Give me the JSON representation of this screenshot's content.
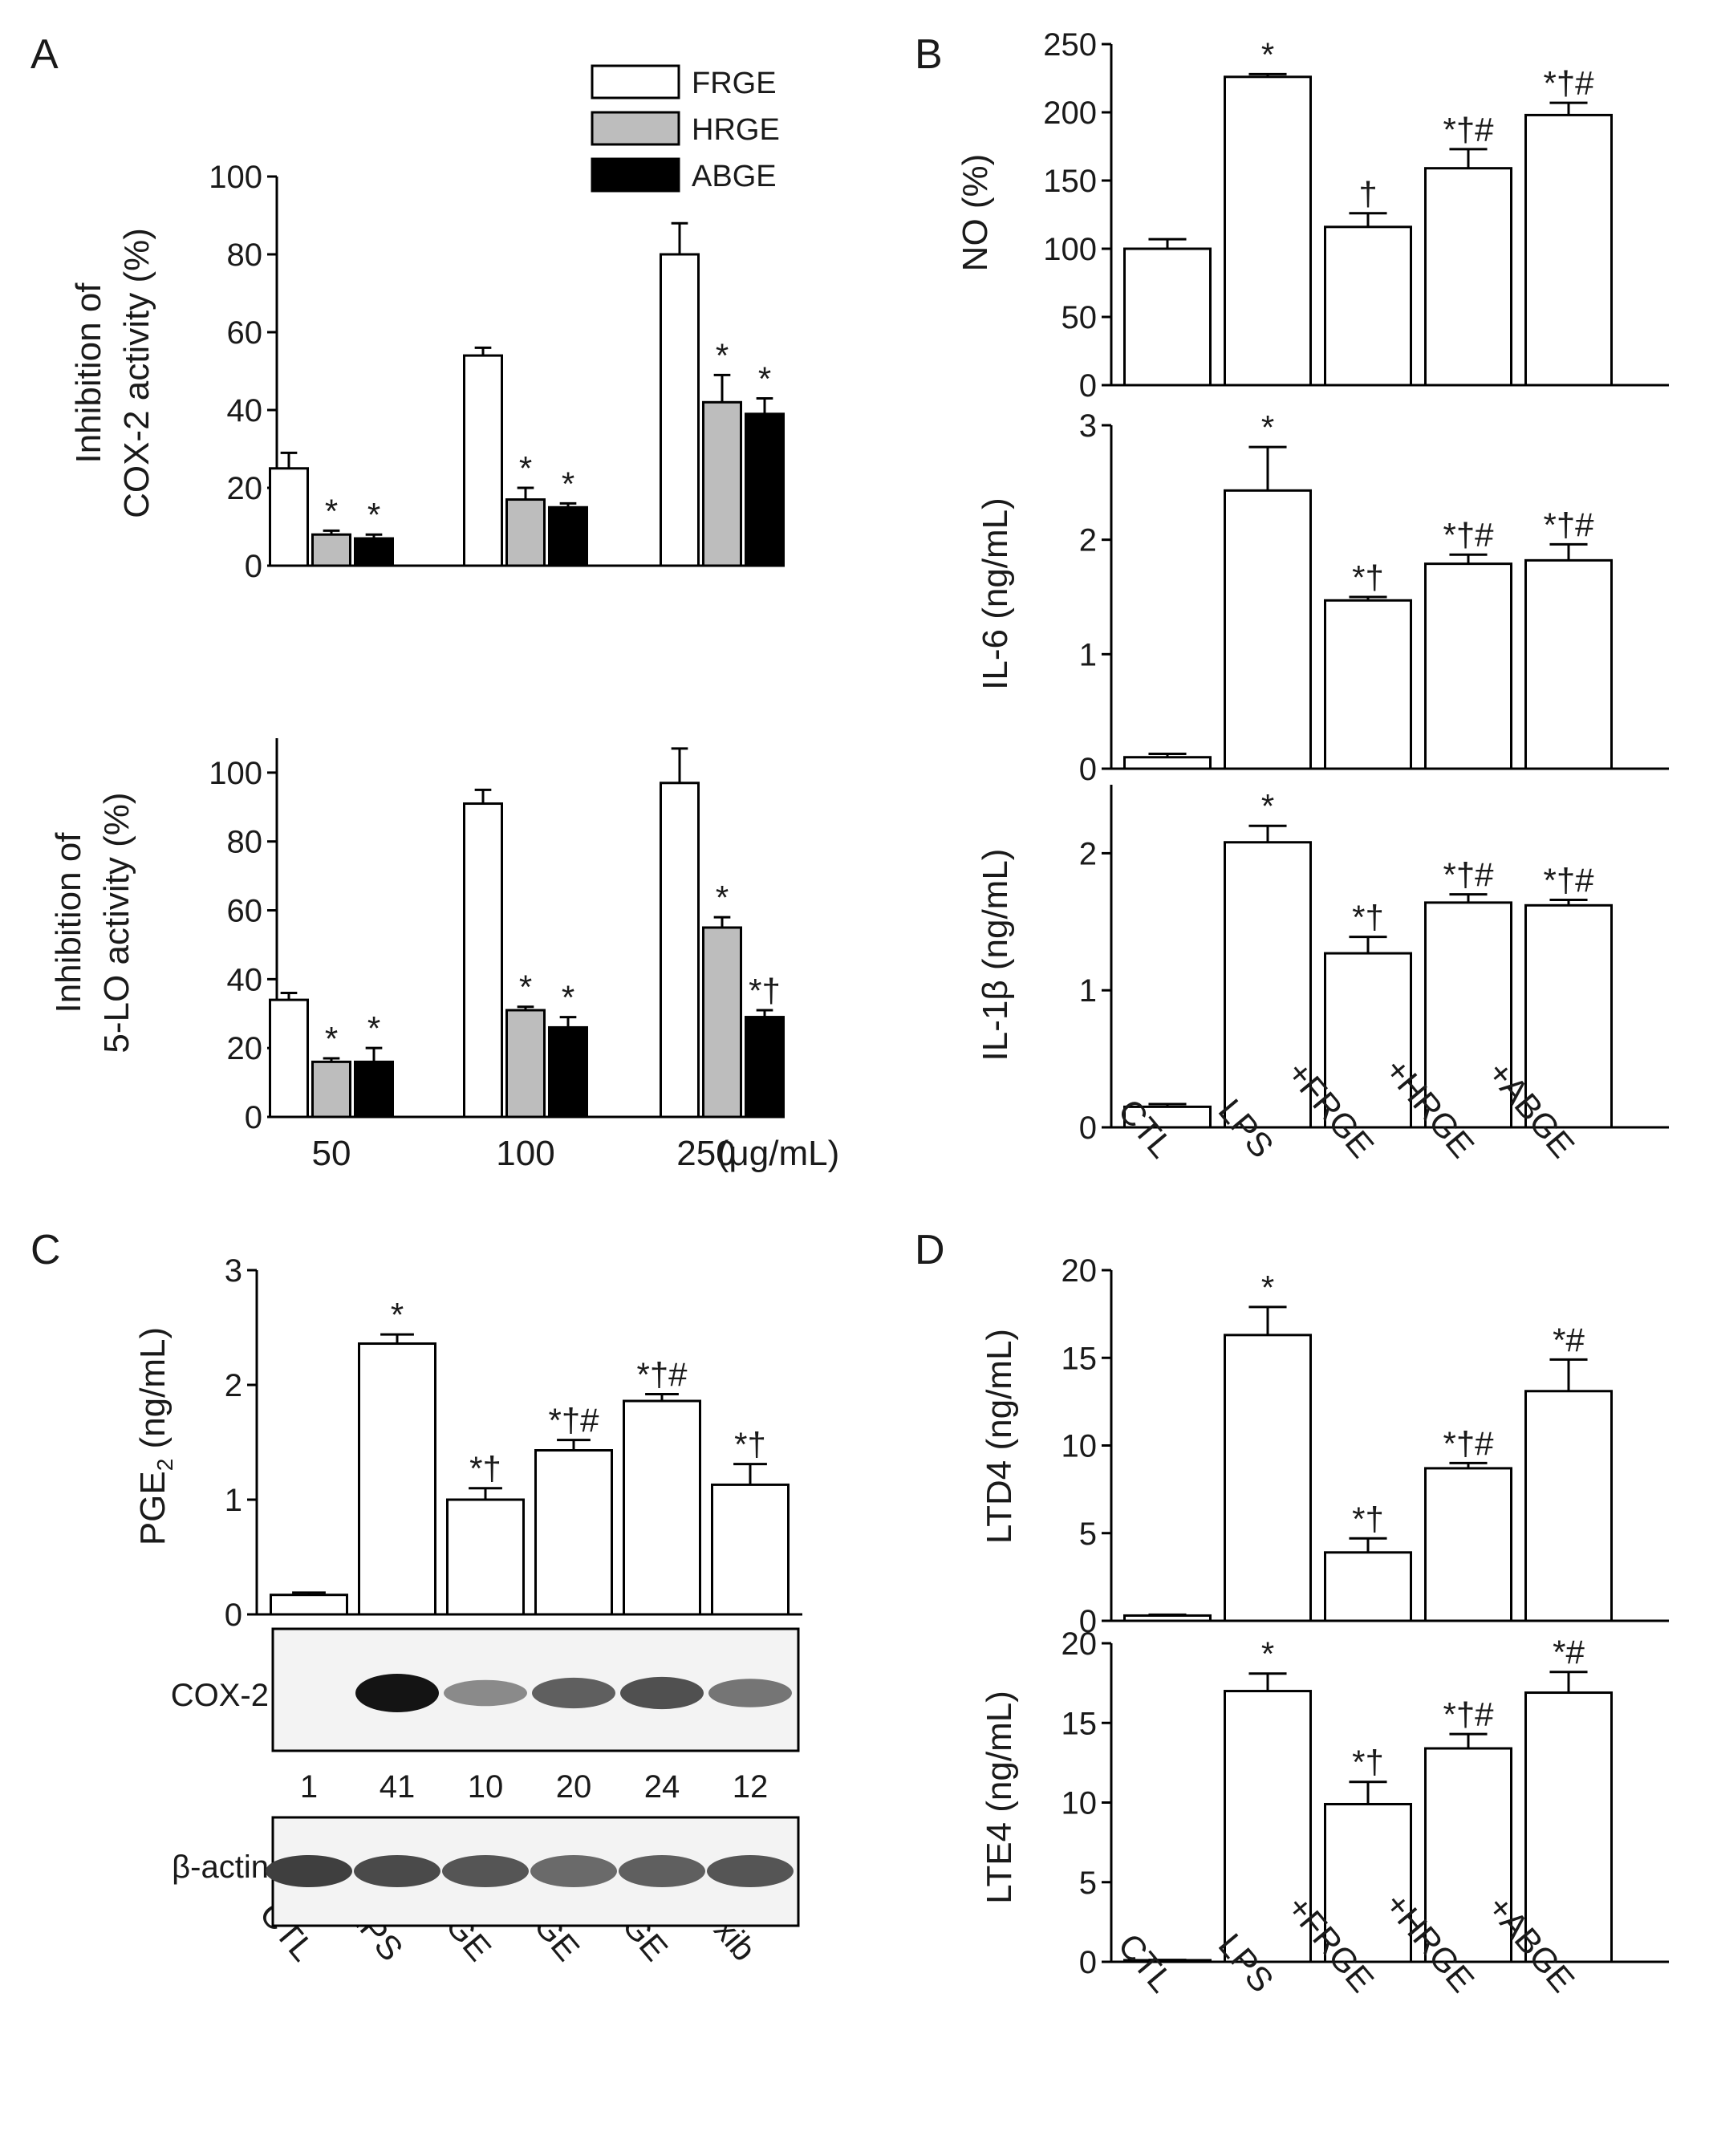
{
  "panel_letters": {
    "a": "A",
    "b": "B",
    "c": "C",
    "d": "D"
  },
  "legend": [
    {
      "label": "FRGE",
      "color": "#ffffff"
    },
    {
      "label": "HRGE",
      "color": "#bdbdbd"
    },
    {
      "label": "ABGE",
      "color": "#000000"
    }
  ],
  "colors": {
    "white_bar": "#ffffff",
    "gray_bar": "#bdbdbd",
    "black_bar": "#000000"
  },
  "chart_data": [
    {
      "id": "a1",
      "type": "bar",
      "panel": "A",
      "ylabel_lines": [
        "Inhibition of",
        "COX-2 activity (%)"
      ],
      "ylim": [
        0,
        100
      ],
      "yticks": [
        0,
        20,
        40,
        60,
        80,
        100
      ],
      "groups": [
        "50",
        "100",
        "250"
      ],
      "series": [
        {
          "name": "FRGE",
          "values": [
            25,
            54,
            80
          ],
          "errors": [
            4,
            2,
            8
          ],
          "labels": [
            "",
            "",
            ""
          ]
        },
        {
          "name": "HRGE",
          "values": [
            8,
            17,
            42
          ],
          "errors": [
            1,
            3,
            7
          ],
          "labels": [
            "*",
            "*",
            "*"
          ]
        },
        {
          "name": "ABGE",
          "values": [
            7,
            15,
            39
          ],
          "errors": [
            1,
            1,
            4
          ],
          "labels": [
            "*",
            "*",
            "*"
          ]
        }
      ]
    },
    {
      "id": "a2",
      "type": "bar",
      "panel": "A",
      "ylabel_lines": [
        "Inhibition of",
        "5-LO activity (%)"
      ],
      "ylim": [
        0,
        110
      ],
      "yticks": [
        0,
        20,
        40,
        60,
        80,
        100
      ],
      "groups": [
        "50",
        "100",
        "250"
      ],
      "xunit": "(μg/mL)",
      "series": [
        {
          "name": "FRGE",
          "values": [
            34,
            91,
            97
          ],
          "errors": [
            2,
            4,
            10
          ],
          "labels": [
            "",
            "",
            ""
          ]
        },
        {
          "name": "HRGE",
          "values": [
            16,
            31,
            55
          ],
          "errors": [
            1,
            1,
            3
          ],
          "labels": [
            "*",
            "*",
            "*"
          ]
        },
        {
          "name": "ABGE",
          "values": [
            16,
            26,
            29
          ],
          "errors": [
            4,
            3,
            2
          ],
          "labels": [
            "*",
            "*",
            "*†"
          ]
        }
      ]
    },
    {
      "id": "b1",
      "type": "bar",
      "panel": "B",
      "ylabel": "NO (%)",
      "ylim": [
        0,
        250
      ],
      "yticks": [
        0,
        50,
        100,
        150,
        200,
        250
      ],
      "categories": [
        "CTL",
        "LPS",
        "+FRGE",
        "+HRGE",
        "+ABGE"
      ],
      "values": [
        100,
        226,
        116,
        159,
        198
      ],
      "errors": [
        7,
        2,
        10,
        14,
        9
      ],
      "labels": [
        "",
        "*",
        "†",
        "*†#",
        "*†#"
      ]
    },
    {
      "id": "b2",
      "type": "bar",
      "panel": "B",
      "ylabel": "IL-6 (ng/mL)",
      "ylim": [
        0,
        3
      ],
      "yticks": [
        0,
        1,
        2,
        3
      ],
      "categories": [
        "CTL",
        "LPS",
        "+FRGE",
        "+HRGE",
        "+ABGE"
      ],
      "values": [
        0.1,
        2.43,
        1.47,
        1.79,
        1.82
      ],
      "errors": [
        0.03,
        0.38,
        0.03,
        0.08,
        0.14
      ],
      "labels": [
        "",
        "*",
        "*†",
        "*†#",
        "*†#"
      ]
    },
    {
      "id": "b3",
      "type": "bar",
      "panel": "B",
      "ylabel": "IL-1β (ng/mL)",
      "ylim": [
        0,
        2.5
      ],
      "yticks": [
        0,
        1,
        2
      ],
      "categories": [
        "CTL",
        "LPS",
        "+FRGE",
        "+HRGE",
        "+ABGE"
      ],
      "values": [
        0.15,
        2.08,
        1.27,
        1.64,
        1.62
      ],
      "errors": [
        0.02,
        0.12,
        0.12,
        0.06,
        0.04
      ],
      "labels": [
        "",
        "*",
        "*†",
        "*†#",
        "*†#"
      ]
    },
    {
      "id": "c1",
      "type": "bar",
      "panel": "C",
      "ylabel": "PGE2 (ng/mL)",
      "ylim": [
        0,
        3
      ],
      "yticks": [
        0,
        1,
        2,
        3
      ],
      "categories": [
        "CTL",
        "LPS",
        "+FRGE",
        "+HRGE",
        "+ABGE",
        "+Celecoxib"
      ],
      "values": [
        0.17,
        2.36,
        1.0,
        1.43,
        1.86,
        1.13
      ],
      "errors": [
        0.02,
        0.08,
        0.1,
        0.09,
        0.06,
        0.18
      ],
      "labels": [
        "",
        "*",
        "*†",
        "*†#",
        "*†#",
        "*†"
      ]
    },
    {
      "id": "d1",
      "type": "bar",
      "panel": "D",
      "ylabel": "LTD4 (ng/mL)",
      "ylim": [
        0,
        20
      ],
      "yticks": [
        0,
        5,
        10,
        15,
        20
      ],
      "categories": [
        "CTL",
        "LPS",
        "+FRGE",
        "+HRGE",
        "+ABGE"
      ],
      "values": [
        0.3,
        16.3,
        3.9,
        8.7,
        13.1
      ],
      "errors": [
        0.05,
        1.6,
        0.8,
        0.3,
        1.8
      ],
      "labels": [
        "",
        "*",
        "*†",
        "*†#",
        "*#"
      ]
    },
    {
      "id": "d2",
      "type": "bar",
      "panel": "D",
      "ylabel": "LTE4 (ng/mL)",
      "ylim": [
        0,
        20
      ],
      "yticks": [
        0,
        5,
        10,
        15,
        20
      ],
      "categories": [
        "CTL",
        "LPS",
        "+FRGE",
        "+HRGE",
        "+ABGE"
      ],
      "values": [
        0.1,
        17.0,
        9.9,
        13.4,
        16.9
      ],
      "errors": [
        0.02,
        1.1,
        1.4,
        0.9,
        1.3
      ],
      "labels": [
        "",
        "*",
        "*†",
        "*†#",
        "*#"
      ]
    }
  ],
  "western_blot": {
    "cox2_label": "COX-2",
    "actin_label": "β-actin",
    "quantification": [
      "1",
      "41",
      "10",
      "20",
      "24",
      "12"
    ],
    "cox2_intensity": [
      0.0,
      1.0,
      0.45,
      0.65,
      0.72,
      0.55
    ],
    "actin_intensity": [
      0.8,
      0.75,
      0.7,
      0.6,
      0.65,
      0.7
    ]
  }
}
